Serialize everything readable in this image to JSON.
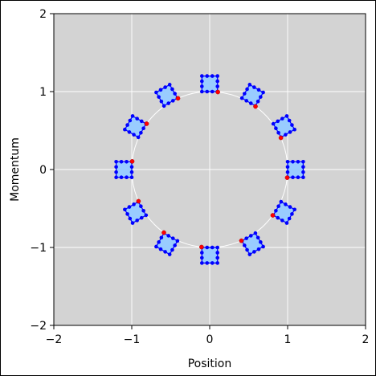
{
  "chart_data": {
    "type": "scatter",
    "title": "",
    "xlabel": "Position",
    "ylabel": "Momentum",
    "xlim": [
      -2,
      2
    ],
    "ylim": [
      -2,
      2
    ],
    "grid": true,
    "x_ticks": [
      "−2",
      "−1",
      "0",
      "1",
      "2"
    ],
    "y_ticks": [
      "−2",
      "−1",
      "0",
      "1",
      "2"
    ],
    "x_tick_values": [
      -2,
      -1,
      0,
      1,
      2
    ],
    "y_tick_values": [
      -2,
      -1,
      0,
      1,
      2
    ],
    "circle": {
      "center": [
        0,
        0
      ],
      "radius": 1.0
    },
    "squares": {
      "count": 12,
      "center_radius": 1.1,
      "first_center_angle_deg": 90,
      "side": 0.2,
      "dots_per_side": 3
    },
    "red_points": {
      "count": 12,
      "radius": 1.0,
      "first_angle_deg": 84
    },
    "colors": {
      "background": "#d3d3d3",
      "grid": "#ffffff",
      "circle": "#ffffff",
      "square_fill": "#99ccff",
      "square_edge": "#0000ff",
      "square_dots": "#0000ff",
      "red_points": "#ff0000"
    }
  }
}
